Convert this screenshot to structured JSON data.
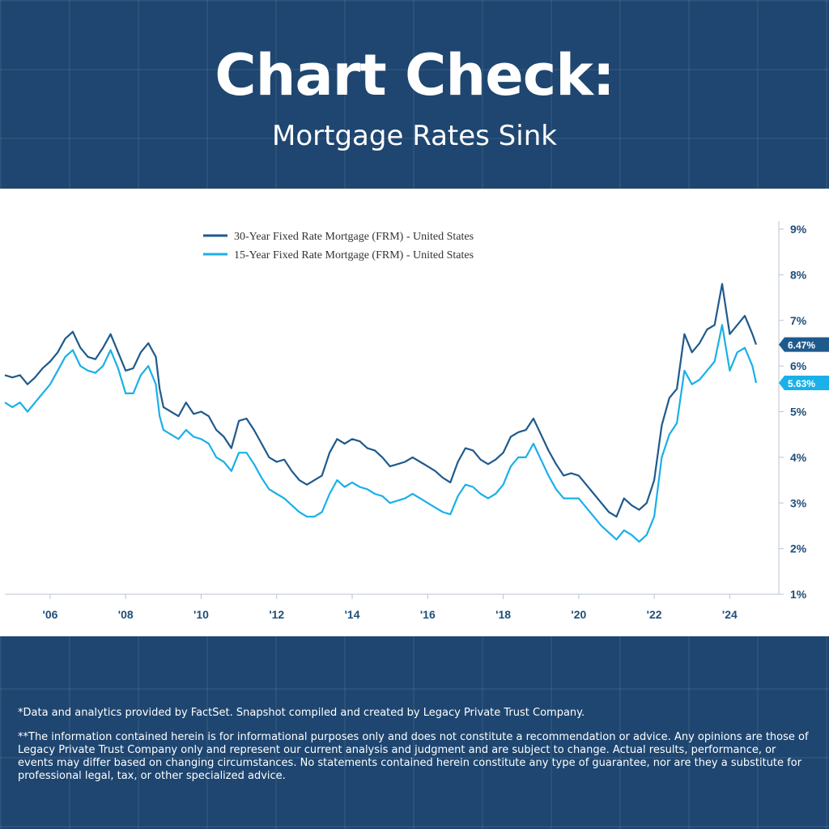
{
  "header": {
    "title": "Chart Check:",
    "subtitle": "Mortgage Rates Sink"
  },
  "colors": {
    "background": "#1e4670",
    "series_30yr": "#1f5a8c",
    "series_15yr": "#1ab0e8",
    "axis_text": "#1f4e79"
  },
  "chart_data": {
    "type": "line",
    "title": "",
    "xlabel": "",
    "ylabel": "",
    "x_ticks": [
      "'06",
      "'08",
      "'10",
      "'12",
      "'14",
      "'16",
      "'18",
      "'20",
      "'22",
      "'24"
    ],
    "y_ticks": [
      "1%",
      "2%",
      "3%",
      "4%",
      "5%",
      "6%",
      "7%",
      "8%",
      "9%"
    ],
    "xlim": [
      2004.8,
      2025.3
    ],
    "ylim": [
      1,
      9
    ],
    "legend_position": "top-center",
    "grid": false,
    "series": [
      {
        "name": "30-Year Fixed Rate Mortgage (FRM) - United States",
        "color": "#1f5a8c",
        "last_value_label": "6.47%",
        "x": [
          2004.8,
          2005.0,
          2005.2,
          2005.4,
          2005.6,
          2005.8,
          2006.0,
          2006.2,
          2006.4,
          2006.6,
          2006.8,
          2007.0,
          2007.2,
          2007.4,
          2007.6,
          2007.8,
          2008.0,
          2008.2,
          2008.4,
          2008.6,
          2008.8,
          2008.9,
          2009.0,
          2009.2,
          2009.4,
          2009.6,
          2009.8,
          2010.0,
          2010.2,
          2010.4,
          2010.6,
          2010.8,
          2011.0,
          2011.2,
          2011.4,
          2011.6,
          2011.8,
          2012.0,
          2012.2,
          2012.4,
          2012.6,
          2012.8,
          2013.0,
          2013.2,
          2013.4,
          2013.6,
          2013.8,
          2014.0,
          2014.2,
          2014.4,
          2014.6,
          2014.8,
          2015.0,
          2015.2,
          2015.4,
          2015.6,
          2015.8,
          2016.0,
          2016.2,
          2016.4,
          2016.6,
          2016.8,
          2017.0,
          2017.2,
          2017.4,
          2017.6,
          2017.8,
          2018.0,
          2018.2,
          2018.4,
          2018.6,
          2018.8,
          2019.0,
          2019.2,
          2019.4,
          2019.6,
          2019.8,
          2020.0,
          2020.2,
          2020.4,
          2020.6,
          2020.8,
          2021.0,
          2021.2,
          2021.4,
          2021.6,
          2021.8,
          2022.0,
          2022.2,
          2022.4,
          2022.6,
          2022.8,
          2023.0,
          2023.2,
          2023.4,
          2023.6,
          2023.8,
          2024.0,
          2024.2,
          2024.4,
          2024.6,
          2024.7
        ],
        "y": [
          5.8,
          5.75,
          5.8,
          5.6,
          5.75,
          5.95,
          6.1,
          6.3,
          6.6,
          6.75,
          6.4,
          6.2,
          6.15,
          6.4,
          6.7,
          6.3,
          5.9,
          5.95,
          6.3,
          6.5,
          6.2,
          5.5,
          5.1,
          5.0,
          4.9,
          5.2,
          4.95,
          5.0,
          4.9,
          4.6,
          4.45,
          4.2,
          4.8,
          4.85,
          4.6,
          4.3,
          4.0,
          3.9,
          3.95,
          3.7,
          3.5,
          3.4,
          3.5,
          3.6,
          4.1,
          4.4,
          4.3,
          4.4,
          4.35,
          4.2,
          4.15,
          4.0,
          3.8,
          3.85,
          3.9,
          4.0,
          3.9,
          3.8,
          3.7,
          3.55,
          3.45,
          3.9,
          4.2,
          4.15,
          3.95,
          3.85,
          3.95,
          4.1,
          4.45,
          4.55,
          4.6,
          4.85,
          4.5,
          4.15,
          3.85,
          3.6,
          3.65,
          3.6,
          3.4,
          3.2,
          3.0,
          2.8,
          2.7,
          3.1,
          2.95,
          2.85,
          3.0,
          3.5,
          4.7,
          5.3,
          5.5,
          6.7,
          6.3,
          6.5,
          6.8,
          6.9,
          7.8,
          6.7,
          6.9,
          7.1,
          6.7,
          6.47
        ]
      },
      {
        "name": "15-Year Fixed Rate Mortgage (FRM) - United States",
        "color": "#1ab0e8",
        "last_value_label": "5.63%",
        "x": [
          2004.8,
          2005.0,
          2005.2,
          2005.4,
          2005.6,
          2005.8,
          2006.0,
          2006.2,
          2006.4,
          2006.6,
          2006.8,
          2007.0,
          2007.2,
          2007.4,
          2007.6,
          2007.8,
          2008.0,
          2008.2,
          2008.4,
          2008.6,
          2008.8,
          2008.9,
          2009.0,
          2009.2,
          2009.4,
          2009.6,
          2009.8,
          2010.0,
          2010.2,
          2010.4,
          2010.6,
          2010.8,
          2011.0,
          2011.2,
          2011.4,
          2011.6,
          2011.8,
          2012.0,
          2012.2,
          2012.4,
          2012.6,
          2012.8,
          2013.0,
          2013.2,
          2013.4,
          2013.6,
          2013.8,
          2014.0,
          2014.2,
          2014.4,
          2014.6,
          2014.8,
          2015.0,
          2015.2,
          2015.4,
          2015.6,
          2015.8,
          2016.0,
          2016.2,
          2016.4,
          2016.6,
          2016.8,
          2017.0,
          2017.2,
          2017.4,
          2017.6,
          2017.8,
          2018.0,
          2018.2,
          2018.4,
          2018.6,
          2018.8,
          2019.0,
          2019.2,
          2019.4,
          2019.6,
          2019.8,
          2020.0,
          2020.2,
          2020.4,
          2020.6,
          2020.8,
          2021.0,
          2021.2,
          2021.4,
          2021.6,
          2021.8,
          2022.0,
          2022.2,
          2022.4,
          2022.6,
          2022.8,
          2023.0,
          2023.2,
          2023.4,
          2023.6,
          2023.8,
          2024.0,
          2024.2,
          2024.4,
          2024.6,
          2024.7
        ],
        "y": [
          5.2,
          5.1,
          5.2,
          5.0,
          5.2,
          5.4,
          5.6,
          5.9,
          6.2,
          6.35,
          6.0,
          5.9,
          5.85,
          6.0,
          6.35,
          5.95,
          5.4,
          5.4,
          5.8,
          6.0,
          5.6,
          4.9,
          4.6,
          4.5,
          4.4,
          4.6,
          4.45,
          4.4,
          4.3,
          4.0,
          3.9,
          3.7,
          4.1,
          4.1,
          3.85,
          3.55,
          3.3,
          3.2,
          3.1,
          2.95,
          2.8,
          2.7,
          2.7,
          2.8,
          3.2,
          3.5,
          3.35,
          3.45,
          3.35,
          3.3,
          3.2,
          3.15,
          3.0,
          3.05,
          3.1,
          3.2,
          3.1,
          3.0,
          2.9,
          2.8,
          2.75,
          3.15,
          3.4,
          3.35,
          3.2,
          3.1,
          3.2,
          3.4,
          3.8,
          4.0,
          4.0,
          4.3,
          3.95,
          3.6,
          3.3,
          3.1,
          3.1,
          3.1,
          2.9,
          2.7,
          2.5,
          2.35,
          2.2,
          2.4,
          2.3,
          2.15,
          2.3,
          2.7,
          4.0,
          4.5,
          4.75,
          5.9,
          5.6,
          5.7,
          5.9,
          6.1,
          6.9,
          5.9,
          6.3,
          6.4,
          6.0,
          5.63
        ]
      }
    ]
  },
  "footer": {
    "note1": "*Data and analytics provided by FactSet. Snapshot compiled and created by Legacy Private Trust Company.",
    "note2": "**The information contained herein is for informational purposes only and does not constitute a recommendation or advice. Any opinions are those of Legacy Private Trust Company only and represent our current analysis and judgment and are subject to change. Actual results, performance, or events may differ based on changing circumstances. No statements contained herein constitute any type of guarantee, nor are they a substitute for professional legal, tax, or other specialized advice."
  }
}
